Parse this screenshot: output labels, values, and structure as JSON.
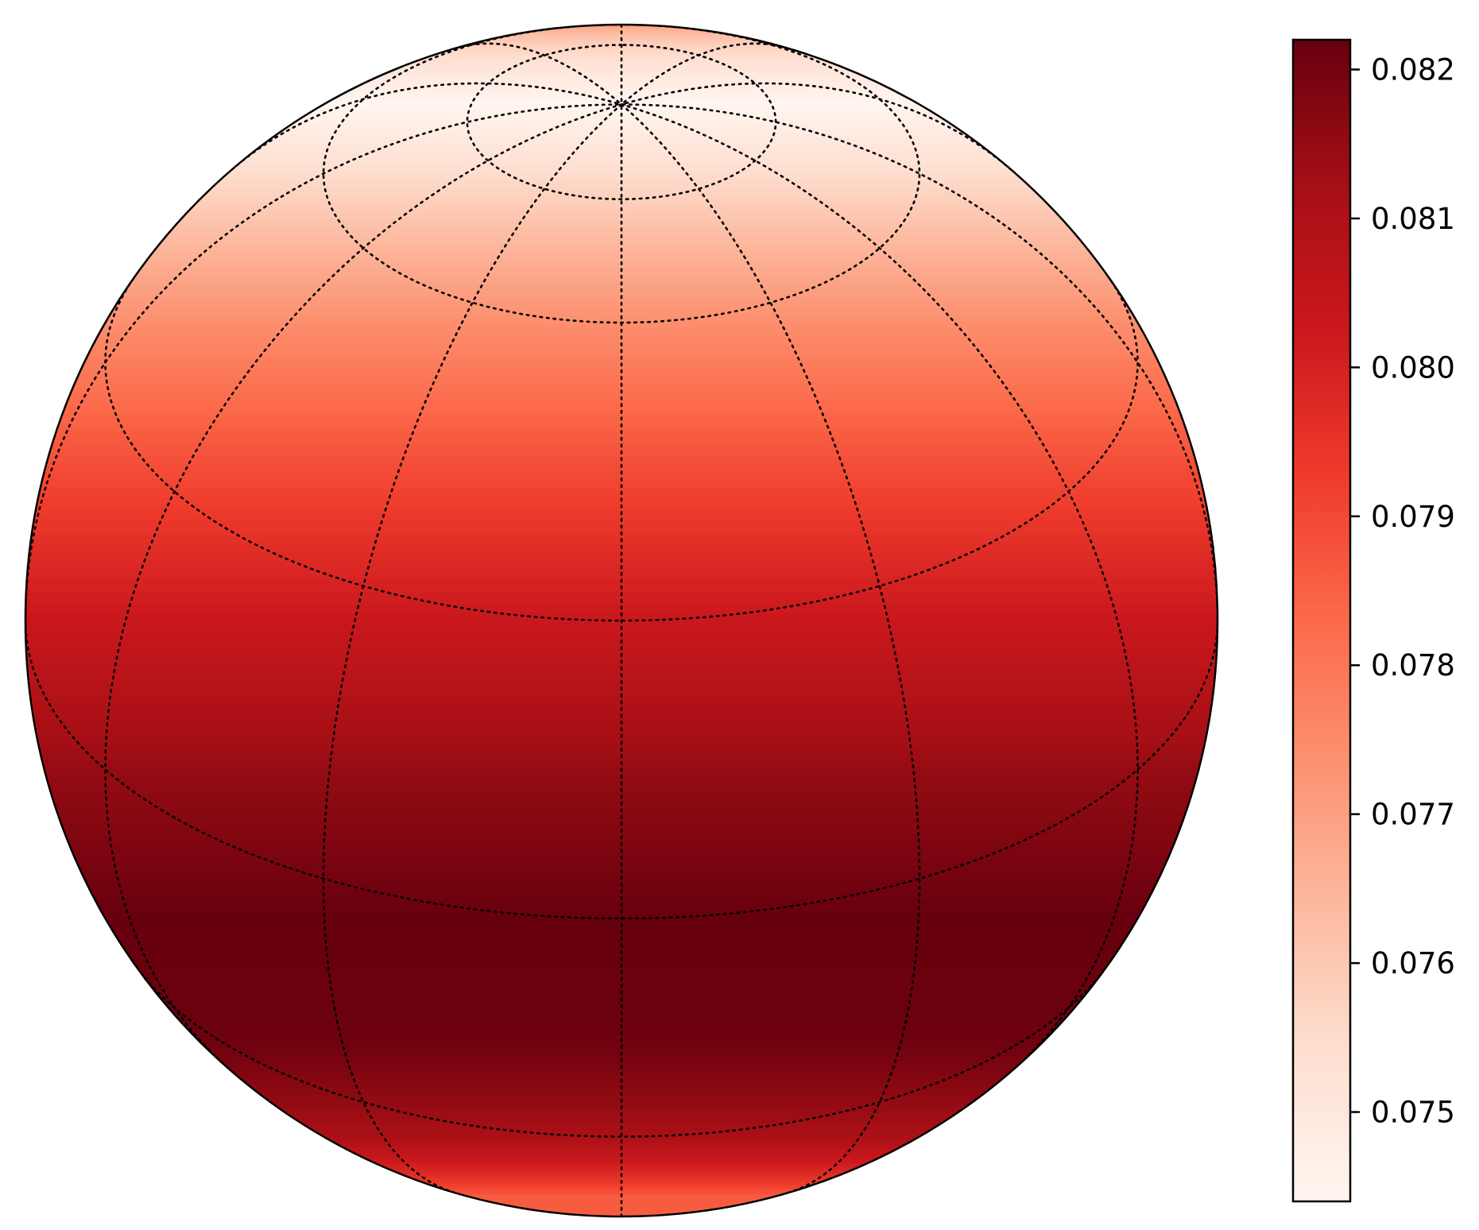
{
  "chart_data": {
    "type": "heatmap",
    "subtype": "orthographic-sphere",
    "title": "",
    "xlabel": "",
    "ylabel": "",
    "colormap": "Reds",
    "grid": "dotted meridians and parallels",
    "view_center_latitude": 30,
    "colorbar": {
      "range": [
        0.0744,
        0.0822
      ],
      "ticks": [
        0.075,
        0.076,
        0.077,
        0.078,
        0.079,
        0.08,
        0.081,
        0.082
      ],
      "tick_labels": [
        "0.075",
        "0.076",
        "0.077",
        "0.078",
        "0.079",
        "0.080",
        "0.081",
        "0.082"
      ]
    },
    "latitude_profile": {
      "lat": [
        90,
        75,
        60,
        45,
        30,
        15,
        0,
        -15,
        -30,
        -45
      ],
      "values": [
        0.0744,
        0.0758,
        0.0774,
        0.0789,
        0.0803,
        0.0815,
        0.0822,
        0.0821,
        0.0811,
        0.0786
      ]
    },
    "parallels": [
      75,
      60,
      30,
      0,
      -30,
      -60
    ],
    "meridians": [
      0,
      30,
      60,
      90,
      120,
      150,
      180,
      210,
      240,
      270,
      300,
      330
    ]
  },
  "colors": {
    "reds_colormap": [
      "#fff5f0",
      "#fee0d2",
      "#fcbba1",
      "#fc9272",
      "#fb6a4a",
      "#ef3b2c",
      "#cb181d",
      "#a50f15",
      "#67000d"
    ],
    "outline": "#000000",
    "grid": "#000000"
  }
}
